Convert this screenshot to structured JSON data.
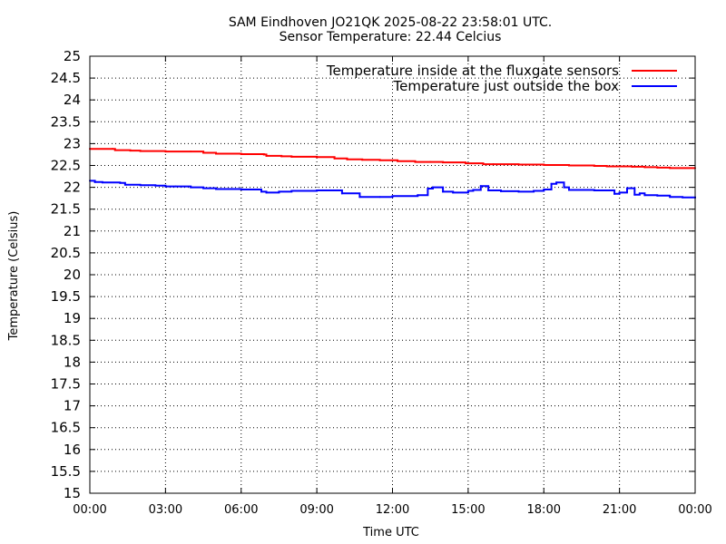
{
  "chart_data": {
    "type": "line",
    "title": "SAM Eindhoven JO21QK 2025-08-22 23:58:01 UTC.",
    "subtitle": "Sensor Temperature: 22.44 Celcius",
    "xlabel": "Time UTC",
    "ylabel": "Temperature (Celsius)",
    "xlim": [
      0,
      24
    ],
    "ylim": [
      15,
      25
    ],
    "grid": true,
    "legend_position": "top-right",
    "x_ticks": [
      {
        "value": 0,
        "label": "00:00"
      },
      {
        "value": 3,
        "label": "03:00"
      },
      {
        "value": 6,
        "label": "06:00"
      },
      {
        "value": 9,
        "label": "09:00"
      },
      {
        "value": 12,
        "label": "12:00"
      },
      {
        "value": 15,
        "label": "15:00"
      },
      {
        "value": 18,
        "label": "18:00"
      },
      {
        "value": 21,
        "label": "21:00"
      },
      {
        "value": 24,
        "label": "00:00"
      }
    ],
    "y_ticks": [
      {
        "value": 15,
        "label": "15"
      },
      {
        "value": 15.5,
        "label": "15.5"
      },
      {
        "value": 16,
        "label": "16"
      },
      {
        "value": 16.5,
        "label": "16.5"
      },
      {
        "value": 17,
        "label": "17"
      },
      {
        "value": 17.5,
        "label": "17.5"
      },
      {
        "value": 18,
        "label": "18"
      },
      {
        "value": 18.5,
        "label": "18.5"
      },
      {
        "value": 19,
        "label": "19"
      },
      {
        "value": 19.5,
        "label": "19.5"
      },
      {
        "value": 20,
        "label": "20"
      },
      {
        "value": 20.5,
        "label": "20.5"
      },
      {
        "value": 21,
        "label": "21"
      },
      {
        "value": 21.5,
        "label": "21.5"
      },
      {
        "value": 22,
        "label": "22"
      },
      {
        "value": 22.5,
        "label": "22.5"
      },
      {
        "value": 23,
        "label": "23"
      },
      {
        "value": 23.5,
        "label": "23.5"
      },
      {
        "value": 24,
        "label": "24"
      },
      {
        "value": 24.5,
        "label": "24.5"
      },
      {
        "value": 25,
        "label": "25"
      }
    ],
    "series": [
      {
        "name": "Temperature inside at the fluxgate sensors",
        "color": "#ff0000",
        "x": [
          0,
          0.9,
          1.0,
          1.6,
          2.0,
          3.0,
          4.0,
          4.5,
          5.0,
          6.0,
          6.9,
          7.0,
          7.6,
          8.0,
          9.0,
          9.7,
          10.2,
          10.8,
          11.5,
          12.0,
          12.2,
          12.9,
          13.5,
          14.0,
          14.9,
          15.6,
          16.0,
          17.0,
          18.0,
          19.0,
          19.5,
          20.0,
          20.5,
          21.0,
          21.5,
          22.0,
          22.5,
          23.0,
          24.0
        ],
        "y": [
          22.88,
          22.88,
          22.85,
          22.84,
          22.83,
          22.82,
          22.82,
          22.79,
          22.77,
          22.76,
          22.75,
          22.72,
          22.71,
          22.7,
          22.69,
          22.66,
          22.64,
          22.63,
          22.62,
          22.62,
          22.6,
          22.58,
          22.58,
          22.57,
          22.55,
          22.53,
          22.53,
          22.52,
          22.51,
          22.5,
          22.5,
          22.49,
          22.48,
          22.48,
          22.47,
          22.46,
          22.45,
          22.44,
          22.44
        ]
      },
      {
        "name": "Temperature just outside the box",
        "color": "#0000ff",
        "x": [
          0,
          0.2,
          0.5,
          1.2,
          1.4,
          2.0,
          2.6,
          3.0,
          3.4,
          4.0,
          4.5,
          5.0,
          6.0,
          6.8,
          7.0,
          7.5,
          8.0,
          9.0,
          9.7,
          10.0,
          10.7,
          11.5,
          12.0,
          13.0,
          13.4,
          13.6,
          14.0,
          14.4,
          15.0,
          15.2,
          15.5,
          15.8,
          16.3,
          17.0,
          17.6,
          18.0,
          18.3,
          18.5,
          18.8,
          19.0,
          20.0,
          20.6,
          20.8,
          21.0,
          21.3,
          21.6,
          21.8,
          22.0,
          22.5,
          23.0,
          23.5,
          24.0
        ],
        "y": [
          22.15,
          22.12,
          22.11,
          22.1,
          22.06,
          22.05,
          22.04,
          22.02,
          22.02,
          22.0,
          21.98,
          21.96,
          21.95,
          21.9,
          21.88,
          21.9,
          21.92,
          21.93,
          21.93,
          21.86,
          21.78,
          21.78,
          21.8,
          21.82,
          21.97,
          22.0,
          21.9,
          21.88,
          21.92,
          21.94,
          22.03,
          21.93,
          21.91,
          21.9,
          21.92,
          21.95,
          22.08,
          22.11,
          22.0,
          21.94,
          21.93,
          21.93,
          21.85,
          21.88,
          21.98,
          21.83,
          21.86,
          21.82,
          21.81,
          21.78,
          21.77,
          21.76
        ]
      }
    ]
  }
}
